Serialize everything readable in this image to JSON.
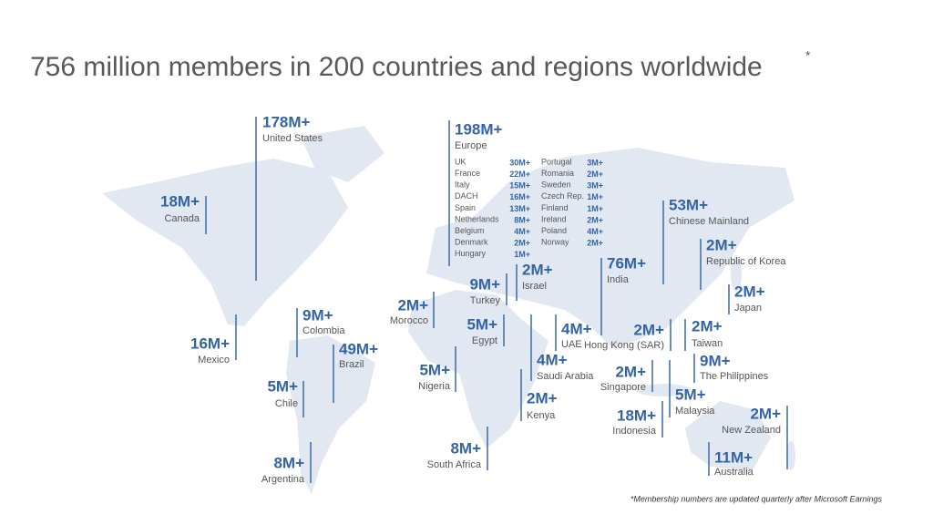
{
  "title": "756 million members in 200 countries and regions worldwide",
  "title_mark": "*",
  "footnote": "*Membership numbers are updated quarterly after Microsoft Earnings",
  "regions": [
    {
      "value": "178M+",
      "label": "United States"
    },
    {
      "value": "18M+",
      "label": "Canada"
    },
    {
      "value": "16M+",
      "label": "Mexico"
    },
    {
      "value": "9M+",
      "label": "Colombia"
    },
    {
      "value": "49M+",
      "label": "Brazil"
    },
    {
      "value": "5M+",
      "label": "Chile"
    },
    {
      "value": "8M+",
      "label": "Argentina"
    },
    {
      "value": "2M+",
      "label": "Morocco"
    },
    {
      "value": "9M+",
      "label": "Turkey"
    },
    {
      "value": "2M+",
      "label": "Israel"
    },
    {
      "value": "5M+",
      "label": "Egypt"
    },
    {
      "value": "5M+",
      "label": "Nigeria"
    },
    {
      "value": "4M+",
      "label": "Saudi Arabia"
    },
    {
      "value": "2M+",
      "label": "Kenya"
    },
    {
      "value": "8M+",
      "label": "South Africa"
    },
    {
      "value": "4M+",
      "label": "UAE"
    },
    {
      "value": "76M+",
      "label": "India"
    },
    {
      "value": "53M+",
      "label": "Chinese Mainland"
    },
    {
      "value": "2M+",
      "label": "Republic of Korea"
    },
    {
      "value": "2M+",
      "label": "Japan"
    },
    {
      "value": "2M+",
      "label": "Hong Kong (SAR)"
    },
    {
      "value": "2M+",
      "label": "Taiwan"
    },
    {
      "value": "9M+",
      "label": "The Philippines"
    },
    {
      "value": "2M+",
      "label": "Singapore"
    },
    {
      "value": "5M+",
      "label": "Malaysia"
    },
    {
      "value": "18M+",
      "label": "Indonesia"
    },
    {
      "value": "2M+",
      "label": "New Zealand"
    },
    {
      "value": "11M+",
      "label": "Australia"
    },
    {
      "value": "198M+",
      "label": "Europe"
    }
  ],
  "europe_breakdown": [
    {
      "country": "UK",
      "value": "30M+"
    },
    {
      "country": "France",
      "value": "22M+"
    },
    {
      "country": "Italy",
      "value": "15M+"
    },
    {
      "country": "DACH",
      "value": "16M+"
    },
    {
      "country": "Spain",
      "value": "13M+"
    },
    {
      "country": "Netherlands",
      "value": "8M+"
    },
    {
      "country": "Belgium",
      "value": "4M+"
    },
    {
      "country": "Denmark",
      "value": "2M+"
    },
    {
      "country": "Hungary",
      "value": "1M+"
    },
    {
      "country": "Portugal",
      "value": "3M+"
    },
    {
      "country": "Romania",
      "value": "2M+"
    },
    {
      "country": "Sweden",
      "value": "3M+"
    },
    {
      "country": "Czech Rep.",
      "value": "1M+"
    },
    {
      "country": "Finland",
      "value": "1M+"
    },
    {
      "country": "Ireland",
      "value": "2M+"
    },
    {
      "country": "Poland",
      "value": "4M+"
    },
    {
      "country": "Norway",
      "value": "2M+"
    }
  ]
}
